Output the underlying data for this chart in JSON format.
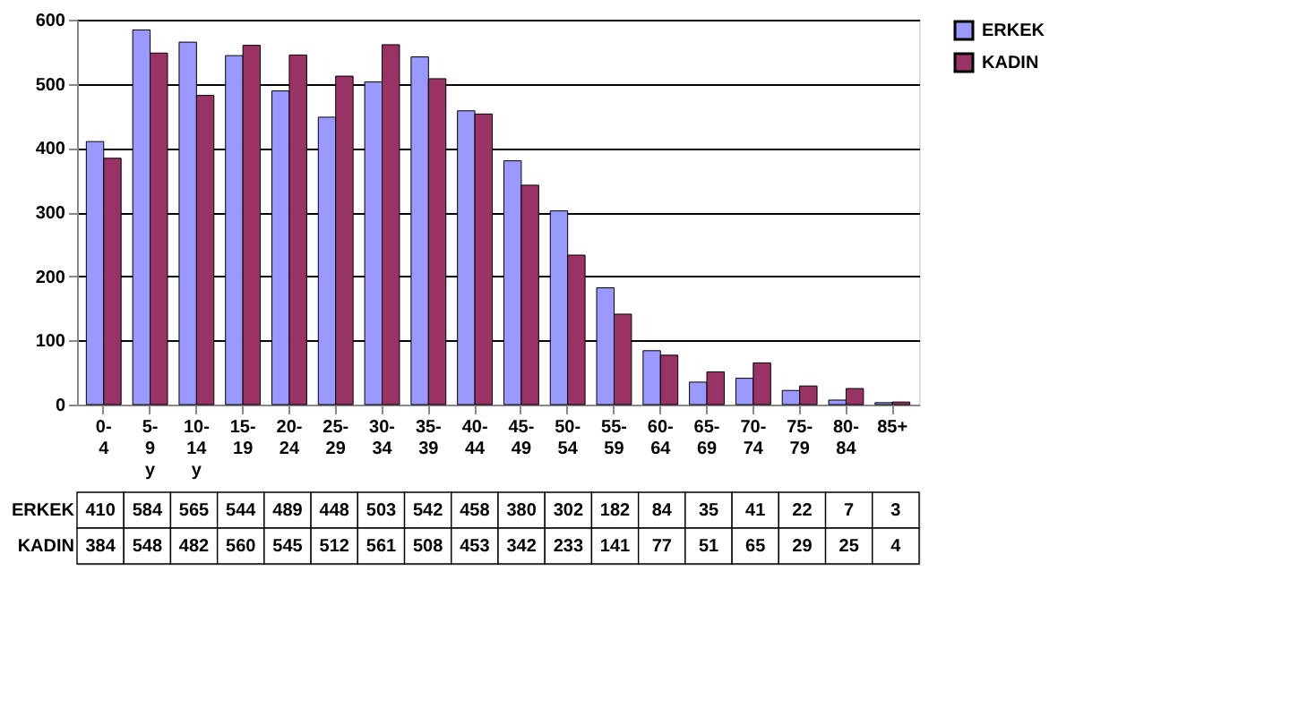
{
  "chart_data": {
    "type": "bar",
    "categories": [
      "0-4",
      "5-9 y",
      "10-14 y",
      "15-19",
      "20-24",
      "25-29",
      "30-34",
      "35-39",
      "40-44",
      "45-49",
      "50-54",
      "55-59",
      "60-64",
      "65-69",
      "70-74",
      "75-79",
      "80-84",
      "85+"
    ],
    "series": [
      {
        "name": "ERKEK",
        "color": "#9999ff",
        "values": [
          410,
          584,
          565,
          544,
          489,
          448,
          503,
          542,
          458,
          380,
          302,
          182,
          84,
          35,
          41,
          22,
          7,
          3
        ]
      },
      {
        "name": "KADIN",
        "color": "#993366",
        "values": [
          384,
          548,
          482,
          560,
          545,
          512,
          561,
          508,
          453,
          342,
          233,
          141,
          77,
          51,
          65,
          29,
          25,
          4
        ]
      }
    ],
    "ylim": [
      0,
      600
    ],
    "yticks": [
      0,
      100,
      200,
      300,
      400,
      500,
      600
    ],
    "grid": "y",
    "legend": "right",
    "data_labels": true
  }
}
